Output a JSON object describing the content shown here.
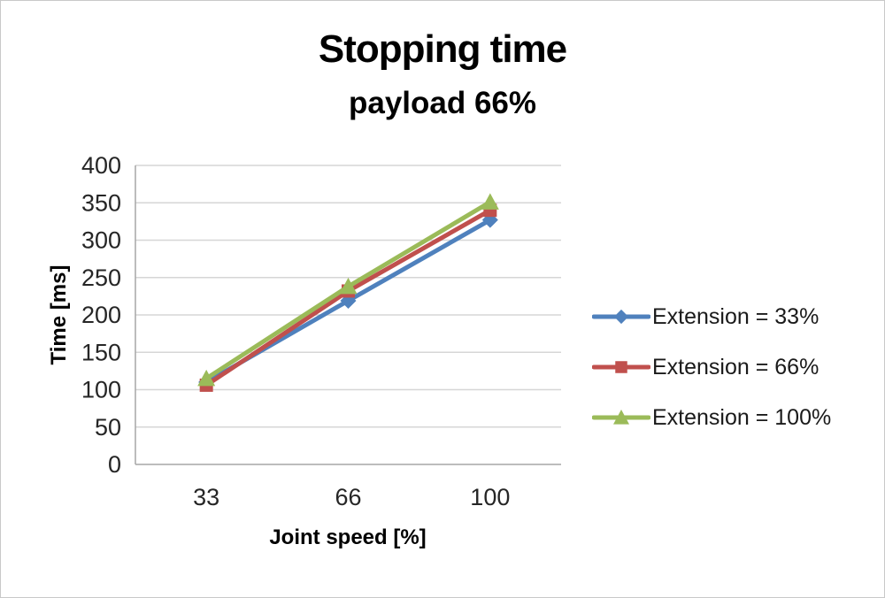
{
  "chart_data": {
    "type": "line",
    "title": "Stopping time",
    "subtitle": "payload 66%",
    "xlabel": "Joint speed [%]",
    "ylabel": "Time [ms]",
    "categories": [
      "33",
      "66",
      "100"
    ],
    "yticks": [
      0,
      50,
      100,
      150,
      200,
      250,
      300,
      350,
      400
    ],
    "ylim": [
      0,
      400
    ],
    "grid": true,
    "legend_position": "right",
    "colors": {
      "gridline": "#d6d6d6",
      "axis": "#a6a6a6",
      "tick_text": "#262626"
    },
    "series": [
      {
        "name": "Extension = 33%",
        "marker": "diamond",
        "color": "#4f81bd",
        "values": [
          110,
          219,
          327
        ]
      },
      {
        "name": "Extension = 66%",
        "marker": "square",
        "color": "#c0504d",
        "values": [
          106,
          232,
          340
        ]
      },
      {
        "name": "Extension = 100%",
        "marker": "triangle",
        "color": "#9bbb59",
        "values": [
          115,
          238,
          351
        ]
      }
    ]
  }
}
